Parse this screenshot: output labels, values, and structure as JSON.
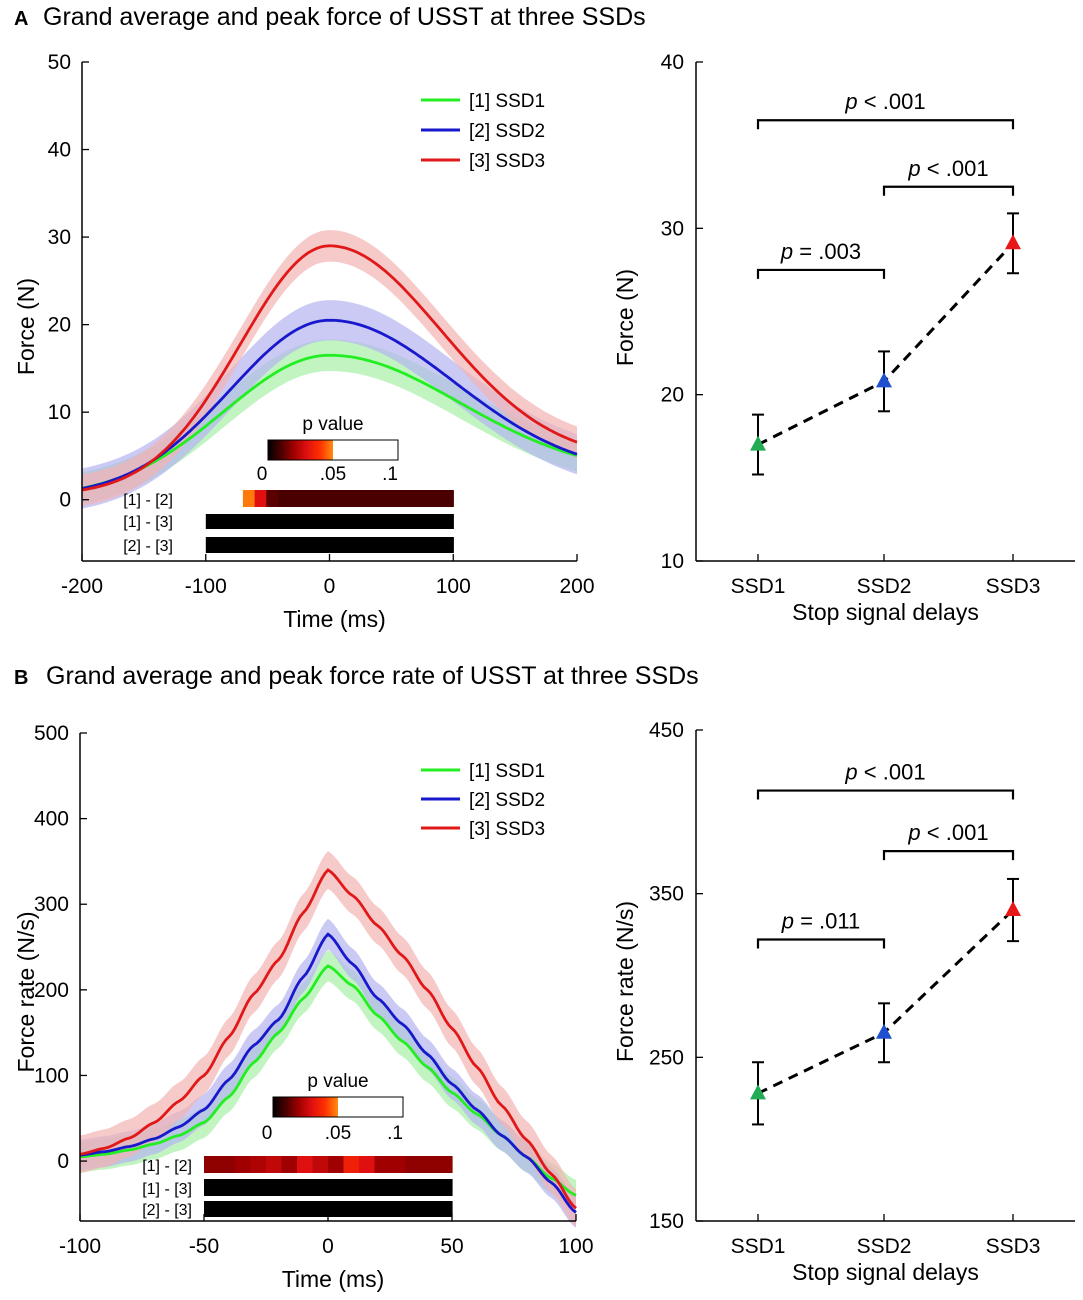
{
  "colors": {
    "ssd1": "#22ee22",
    "ssd2": "#1818cc",
    "ssd3": "#e01818",
    "ssd1_fill": "#a8f0a8",
    "ssd2_fill": "#b4b4f0",
    "ssd3_fill": "#f4b4b4",
    "marker1": "#22aa55",
    "marker2": "#1f50d0",
    "marker3": "#e81818"
  },
  "pvalue_colorbar": {
    "label": "p value",
    "ticks": [
      "0",
      ".05",
      ".1"
    ]
  },
  "chart_data": [
    {
      "id": "A-left",
      "type": "line",
      "panel_letter": "A",
      "panel_title": "Grand average and peak force of USST at three SSDs",
      "xlabel": "Time (ms)",
      "ylabel": "Force (N)",
      "xlim": [
        -200,
        200
      ],
      "ylim": [
        -7,
        50
      ],
      "xticks": [
        -200,
        -100,
        0,
        100,
        200
      ],
      "yticks": [
        0,
        10,
        20,
        30,
        40,
        50
      ],
      "xtick_labels": [
        "-200",
        "-100",
        "0",
        "100",
        "200"
      ],
      "ytick_labels": [
        "0",
        "10",
        "20",
        "30",
        "40",
        "50"
      ],
      "legend": [
        "[1] SSD1",
        "[2] SSD2",
        "[3] SSD3"
      ],
      "shape": "gauss",
      "series": [
        {
          "name": "[1] SSD1",
          "peak": 16.5,
          "baseline": 0.3,
          "sigma_left": 85,
          "sigma_right": 105,
          "tail_end": 2.8,
          "band": 1.8
        },
        {
          "name": "[2] SSD2",
          "peak": 20.5,
          "baseline": 0.4,
          "sigma_left": 80,
          "sigma_right": 100,
          "tail_end": 2.8,
          "band": 2.3
        },
        {
          "name": "[3] SSD3",
          "peak": 29.0,
          "baseline": 0.5,
          "sigma_left": 72,
          "sigma_right": 90,
          "tail_end": 4.5,
          "band": 1.8
        }
      ],
      "pvalue_rows": [
        {
          "label": "[1] - [2]",
          "x_start": -70,
          "x_end": 100,
          "pvalues": [
            0.048,
            0.03,
            0.012,
            0.01,
            0.01,
            0.01,
            0.01,
            0.01,
            0.01,
            0.01,
            0.01,
            0.01,
            0.01,
            0.01,
            0.01,
            0.01,
            0.01,
            0.01
          ]
        },
        {
          "label": "[1] - [3]",
          "x_start": -100,
          "x_end": 100,
          "pvalues": [
            0.0
          ]
        },
        {
          "label": "[2] - [3]",
          "x_start": -100,
          "x_end": 100,
          "pvalues": [
            0.0
          ]
        }
      ]
    },
    {
      "id": "A-right",
      "type": "scatter",
      "xlabel": "Stop signal delays",
      "ylabel": "Force (N)",
      "categories": [
        "SSD1",
        "SSD2",
        "SSD3"
      ],
      "ylim": [
        10,
        40
      ],
      "yticks": [
        10,
        20,
        30,
        40
      ],
      "ytick_labels": [
        "10",
        "20",
        "30",
        "40"
      ],
      "values": [
        17.0,
        20.8,
        29.1
      ],
      "errors": [
        1.8,
        1.8,
        1.8
      ],
      "comparisons": [
        {
          "from": 0,
          "to": 2,
          "y": 36.5,
          "label": "p < .001"
        },
        {
          "from": 1,
          "to": 2,
          "y": 32.5,
          "label": "p < .001"
        },
        {
          "from": 0,
          "to": 1,
          "y": 27.5,
          "label": "p = .003"
        }
      ]
    },
    {
      "id": "B-left",
      "type": "line",
      "panel_letter": "B",
      "panel_title": "Grand average and peak force rate of USST at three SSDs",
      "xlabel": "Time (ms)",
      "ylabel": "Force rate (N/s)",
      "xlim": [
        -100,
        100
      ],
      "ylim": [
        -70,
        500
      ],
      "xticks": [
        -100,
        -50,
        0,
        50,
        100
      ],
      "yticks": [
        0,
        100,
        200,
        300,
        400,
        500
      ],
      "xtick_labels": [
        "-100",
        "-50",
        "0",
        "50",
        "100"
      ],
      "ytick_labels": [
        "0",
        "100",
        "200",
        "300",
        "400",
        "500"
      ],
      "legend": [
        "[1] SSD1",
        "[2] SSD2",
        "[3] SSD3"
      ],
      "shape": "points",
      "series": [
        {
          "name": "[1] SSD1",
          "band": 18,
          "points": [
            [
              -100,
              5
            ],
            [
              -90,
              8
            ],
            [
              -80,
              13
            ],
            [
              -70,
              20
            ],
            [
              -60,
              30
            ],
            [
              -50,
              45
            ],
            [
              -40,
              75
            ],
            [
              -30,
              115
            ],
            [
              -20,
              150
            ],
            [
              -10,
              190
            ],
            [
              0,
              228
            ],
            [
              10,
              205
            ],
            [
              20,
              170
            ],
            [
              30,
              140
            ],
            [
              40,
              110
            ],
            [
              50,
              80
            ],
            [
              60,
              55
            ],
            [
              70,
              30
            ],
            [
              80,
              5
            ],
            [
              90,
              -20
            ],
            [
              100,
              -40
            ]
          ]
        },
        {
          "name": "[2] SSD2",
          "band": 18,
          "points": [
            [
              -100,
              7
            ],
            [
              -90,
              11
            ],
            [
              -80,
              17
            ],
            [
              -70,
              26
            ],
            [
              -60,
              40
            ],
            [
              -50,
              60
            ],
            [
              -40,
              95
            ],
            [
              -30,
              135
            ],
            [
              -20,
              165
            ],
            [
              -10,
              215
            ],
            [
              0,
              265
            ],
            [
              10,
              230
            ],
            [
              20,
              190
            ],
            [
              30,
              160
            ],
            [
              40,
              125
            ],
            [
              50,
              90
            ],
            [
              60,
              60
            ],
            [
              70,
              30
            ],
            [
              80,
              5
            ],
            [
              90,
              -25
            ],
            [
              100,
              -60
            ]
          ]
        },
        {
          "name": "[3] SSD3",
          "band": 22,
          "points": [
            [
              -100,
              8
            ],
            [
              -90,
              15
            ],
            [
              -80,
              27
            ],
            [
              -70,
              45
            ],
            [
              -60,
              70
            ],
            [
              -50,
              100
            ],
            [
              -40,
              145
            ],
            [
              -30,
              195
            ],
            [
              -20,
              235
            ],
            [
              -10,
              290
            ],
            [
              0,
              340
            ],
            [
              10,
              310
            ],
            [
              20,
              275
            ],
            [
              30,
              240
            ],
            [
              40,
              200
            ],
            [
              50,
              155
            ],
            [
              60,
              110
            ],
            [
              70,
              65
            ],
            [
              80,
              25
            ],
            [
              90,
              -15
            ],
            [
              100,
              -55
            ]
          ]
        }
      ],
      "pvalue_rows": [
        {
          "label": "[1] - [2]",
          "x_start": -50,
          "x_end": 50,
          "pvalues": [
            0.018,
            0.018,
            0.02,
            0.022,
            0.025,
            0.02,
            0.03,
            0.025,
            0.02,
            0.035,
            0.03,
            0.02,
            0.02,
            0.018,
            0.018,
            0.018
          ]
        },
        {
          "label": "[1] - [3]",
          "x_start": -50,
          "x_end": 50,
          "pvalues": [
            0.0
          ]
        },
        {
          "label": "[2] - [3]",
          "x_start": -50,
          "x_end": 50,
          "pvalues": [
            0.0
          ]
        }
      ]
    },
    {
      "id": "B-right",
      "type": "scatter",
      "xlabel": "Stop signal delays",
      "ylabel": "Force rate (N/s)",
      "categories": [
        "SSD1",
        "SSD2",
        "SSD3"
      ],
      "ylim": [
        150,
        450
      ],
      "yticks": [
        150,
        250,
        350,
        450
      ],
      "ytick_labels": [
        "150",
        "250",
        "350",
        "450"
      ],
      "values": [
        228,
        265,
        340
      ],
      "errors": [
        19,
        18,
        19
      ],
      "comparisons": [
        {
          "from": 0,
          "to": 2,
          "y": 413,
          "label": "p < .001"
        },
        {
          "from": 1,
          "to": 2,
          "y": 376,
          "label": "p < .001"
        },
        {
          "from": 0,
          "to": 1,
          "y": 322,
          "label": "p = .011"
        }
      ]
    }
  ]
}
